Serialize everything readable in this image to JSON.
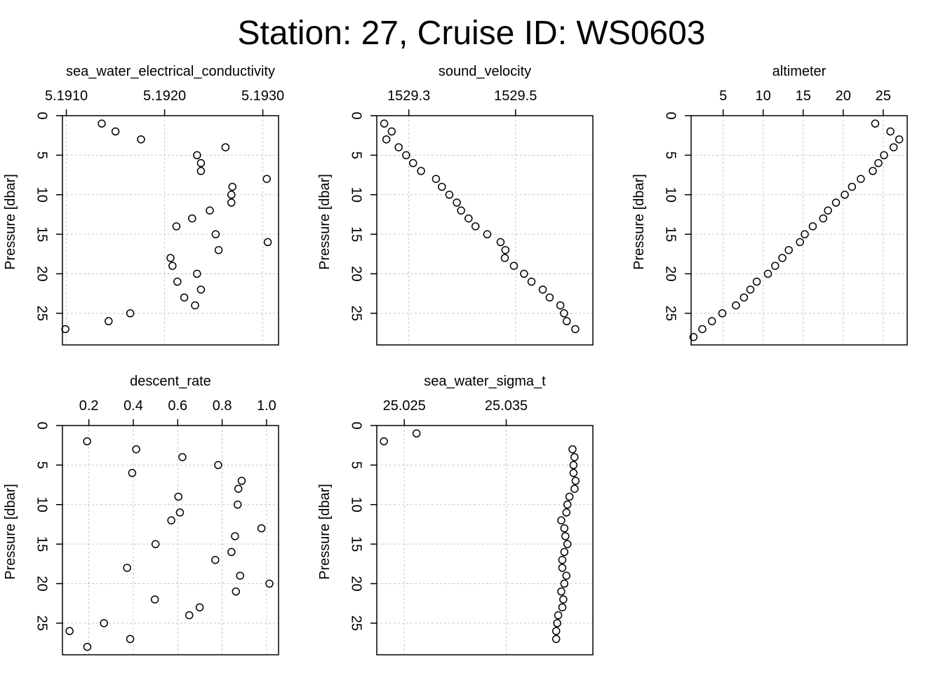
{
  "title": "Station: 27, Cruise ID: WS0603",
  "chart_data": [
    {
      "type": "scatter",
      "title": "sea_water_electrical_conductivity",
      "ylabel": "Pressure [dbar]",
      "xticks": [
        "5.1910",
        "5.1920",
        "5.1930"
      ],
      "xtick_values": [
        5.191,
        5.192,
        5.193
      ],
      "yticks": [
        0,
        5,
        10,
        15,
        20,
        25
      ],
      "xlim": [
        5.19096,
        5.19316
      ],
      "ylim": [
        0,
        29
      ],
      "y_reversed": true,
      "grid": true,
      "points": [
        [
          5.19136,
          1
        ],
        [
          5.1915,
          2
        ],
        [
          5.19176,
          3
        ],
        [
          5.19262,
          4
        ],
        [
          5.19233,
          5
        ],
        [
          5.19237,
          6
        ],
        [
          5.19237,
          7
        ],
        [
          5.19304,
          8
        ],
        [
          5.19269,
          9
        ],
        [
          5.19268,
          10
        ],
        [
          5.19268,
          11
        ],
        [
          5.19246,
          12
        ],
        [
          5.19228,
          13
        ],
        [
          5.19212,
          14
        ],
        [
          5.19252,
          15
        ],
        [
          5.19305,
          16
        ],
        [
          5.19255,
          17
        ],
        [
          5.19206,
          18
        ],
        [
          5.19208,
          19
        ],
        [
          5.19233,
          20
        ],
        [
          5.19213,
          21
        ],
        [
          5.19237,
          22
        ],
        [
          5.1922,
          23
        ],
        [
          5.19231,
          24
        ],
        [
          5.19165,
          25
        ],
        [
          5.19143,
          26
        ],
        [
          5.19099,
          27
        ]
      ]
    },
    {
      "type": "scatter",
      "title": "sound_velocity",
      "ylabel": "Pressure [dbar]",
      "xticks": [
        "1529.3",
        "1529.5"
      ],
      "xtick_values": [
        1529.3,
        1529.5
      ],
      "yticks": [
        0,
        5,
        10,
        15,
        20,
        25
      ],
      "xlim": [
        1529.24,
        1529.645
      ],
      "ylim": [
        0,
        29
      ],
      "y_reversed": true,
      "grid": true,
      "points": [
        [
          1529.254,
          1
        ],
        [
          1529.268,
          2
        ],
        [
          1529.258,
          3
        ],
        [
          1529.281,
          4
        ],
        [
          1529.295,
          5
        ],
        [
          1529.308,
          6
        ],
        [
          1529.323,
          7
        ],
        [
          1529.351,
          8
        ],
        [
          1529.362,
          9
        ],
        [
          1529.376,
          10
        ],
        [
          1529.39,
          11
        ],
        [
          1529.398,
          12
        ],
        [
          1529.412,
          13
        ],
        [
          1529.425,
          14
        ],
        [
          1529.447,
          15
        ],
        [
          1529.472,
          16
        ],
        [
          1529.481,
          17
        ],
        [
          1529.48,
          18
        ],
        [
          1529.497,
          19
        ],
        [
          1529.516,
          20
        ],
        [
          1529.53,
          21
        ],
        [
          1529.551,
          22
        ],
        [
          1529.564,
          23
        ],
        [
          1529.584,
          24
        ],
        [
          1529.591,
          25
        ],
        [
          1529.596,
          26
        ],
        [
          1529.612,
          27
        ]
      ]
    },
    {
      "type": "scatter",
      "title": "altimeter",
      "ylabel": "Pressure [dbar]",
      "xticks": [
        "5",
        "10",
        "15",
        "20",
        "25"
      ],
      "xtick_values": [
        5,
        10,
        15,
        20,
        25
      ],
      "yticks": [
        0,
        5,
        10,
        15,
        20,
        25
      ],
      "xlim": [
        1.0,
        28.0
      ],
      "ylim": [
        0,
        29
      ],
      "y_reversed": true,
      "grid": true,
      "points": [
        [
          24.0,
          1
        ],
        [
          25.9,
          2
        ],
        [
          27.0,
          3
        ],
        [
          26.3,
          4
        ],
        [
          25.1,
          5
        ],
        [
          24.4,
          6
        ],
        [
          23.7,
          7
        ],
        [
          22.2,
          8
        ],
        [
          21.1,
          9
        ],
        [
          20.2,
          10
        ],
        [
          19.1,
          11
        ],
        [
          18.1,
          12
        ],
        [
          17.5,
          13
        ],
        [
          16.2,
          14
        ],
        [
          15.2,
          15
        ],
        [
          14.6,
          16
        ],
        [
          13.2,
          17
        ],
        [
          12.4,
          18
        ],
        [
          11.5,
          19
        ],
        [
          10.6,
          20
        ],
        [
          9.2,
          21
        ],
        [
          8.4,
          22
        ],
        [
          7.6,
          23
        ],
        [
          6.6,
          24
        ],
        [
          4.9,
          25
        ],
        [
          3.6,
          26
        ],
        [
          2.4,
          27
        ],
        [
          1.3,
          28
        ]
      ]
    },
    {
      "type": "scatter",
      "title": "descent_rate",
      "ylabel": "Pressure [dbar]",
      "xticks": [
        "0.2",
        "0.4",
        "0.6",
        "0.8",
        "1.0"
      ],
      "xtick_values": [
        0.2,
        0.4,
        0.6,
        0.8,
        1.0
      ],
      "yticks": [
        0,
        5,
        10,
        15,
        20,
        25
      ],
      "xlim": [
        0.081,
        1.054
      ],
      "ylim": [
        0,
        29
      ],
      "y_reversed": true,
      "grid": true,
      "points": [
        [
          0.192,
          2
        ],
        [
          0.413,
          3
        ],
        [
          0.621,
          4
        ],
        [
          0.782,
          5
        ],
        [
          0.395,
          6
        ],
        [
          0.888,
          7
        ],
        [
          0.873,
          8
        ],
        [
          0.603,
          9
        ],
        [
          0.87,
          10
        ],
        [
          0.61,
          11
        ],
        [
          0.571,
          12
        ],
        [
          0.977,
          13
        ],
        [
          0.858,
          14
        ],
        [
          0.5,
          15
        ],
        [
          0.842,
          16
        ],
        [
          0.769,
          17
        ],
        [
          0.372,
          18
        ],
        [
          0.881,
          19
        ],
        [
          1.013,
          20
        ],
        [
          0.862,
          21
        ],
        [
          0.497,
          22
        ],
        [
          0.699,
          23
        ],
        [
          0.652,
          24
        ],
        [
          0.268,
          25
        ],
        [
          0.113,
          26
        ],
        [
          0.386,
          27
        ],
        [
          0.193,
          28
        ]
      ]
    },
    {
      "type": "scatter",
      "title": "sea_water_sigma_t",
      "ylabel": "Pressure [dbar]",
      "xticks": [
        "25.025",
        "25.035"
      ],
      "xtick_values": [
        25.025,
        25.035
      ],
      "yticks": [
        0,
        5,
        10,
        15,
        20,
        25
      ],
      "xlim": [
        25.0223,
        25.0435
      ],
      "ylim": [
        0,
        29
      ],
      "y_reversed": true,
      "grid": true,
      "points": [
        [
          25.0262,
          1
        ],
        [
          25.023,
          2
        ],
        [
          25.0415,
          3
        ],
        [
          25.0417,
          4
        ],
        [
          25.0416,
          5
        ],
        [
          25.0416,
          6
        ],
        [
          25.0418,
          7
        ],
        [
          25.0417,
          8
        ],
        [
          25.0412,
          9
        ],
        [
          25.041,
          10
        ],
        [
          25.0409,
          11
        ],
        [
          25.0404,
          12
        ],
        [
          25.0407,
          13
        ],
        [
          25.0408,
          14
        ],
        [
          25.041,
          15
        ],
        [
          25.0407,
          16
        ],
        [
          25.0405,
          17
        ],
        [
          25.0405,
          18
        ],
        [
          25.0409,
          19
        ],
        [
          25.0407,
          20
        ],
        [
          25.0404,
          21
        ],
        [
          25.0406,
          22
        ],
        [
          25.0405,
          23
        ],
        [
          25.0401,
          24
        ],
        [
          25.04,
          25
        ],
        [
          25.0399,
          26
        ],
        [
          25.0399,
          27
        ]
      ]
    }
  ]
}
